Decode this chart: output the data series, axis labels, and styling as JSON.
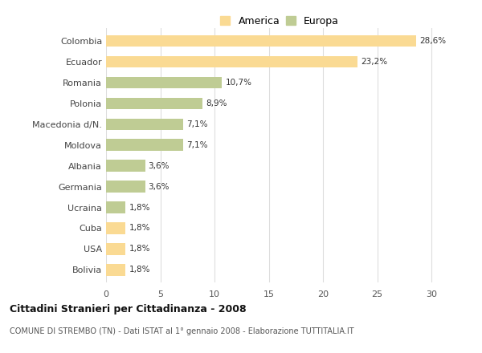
{
  "categories": [
    "Colombia",
    "Ecuador",
    "Romania",
    "Polonia",
    "Macedonia d/N.",
    "Moldova",
    "Albania",
    "Germania",
    "Ucraina",
    "Cuba",
    "USA",
    "Bolivia"
  ],
  "values": [
    28.6,
    23.2,
    10.7,
    8.9,
    7.1,
    7.1,
    3.6,
    3.6,
    1.8,
    1.8,
    1.8,
    1.8
  ],
  "labels": [
    "28,6%",
    "23,2%",
    "10,7%",
    "8,9%",
    "7,1%",
    "7,1%",
    "3,6%",
    "3,6%",
    "1,8%",
    "1,8%",
    "1,8%",
    "1,8%"
  ],
  "colors": [
    "#FADA93",
    "#FADA93",
    "#BFCC94",
    "#BFCC94",
    "#BFCC94",
    "#BFCC94",
    "#BFCC94",
    "#BFCC94",
    "#BFCC94",
    "#FADA93",
    "#FADA93",
    "#FADA93"
  ],
  "america_color": "#FADA93",
  "europa_color": "#BFCC94",
  "xlim": [
    0,
    32
  ],
  "xticks": [
    0,
    5,
    10,
    15,
    20,
    25,
    30
  ],
  "title": "Cittadini Stranieri per Cittadinanza - 2008",
  "subtitle": "COMUNE DI STREMBO (TN) - Dati ISTAT al 1° gennaio 2008 - Elaborazione TUTTITALIA.IT",
  "background_color": "#FFFFFF",
  "grid_color": "#DDDDDD",
  "bar_height": 0.55
}
